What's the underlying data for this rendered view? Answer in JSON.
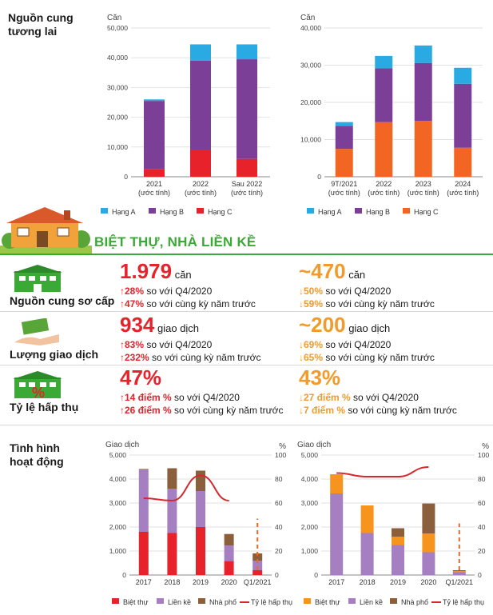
{
  "top": {
    "section_title_line1": "Nguồn cung",
    "section_title_line2": "tương lai"
  },
  "banner": {
    "title": "BIỆT THỰ, NHÀ LIỀN KỀ"
  },
  "metrics": [
    {
      "label": "Nguồn cung sơ cấp",
      "left": {
        "value": "1.979",
        "unit": "căn",
        "line1": {
          "arrow": "↑",
          "pct": "28%",
          "text": "so với Q4/2020"
        },
        "line2": {
          "arrow": "↑",
          "pct": "47%",
          "text": "so với cùng kỳ năm trước"
        }
      },
      "right": {
        "value": "~470",
        "unit": "căn",
        "line1": {
          "arrow": "↓",
          "pct": "50%",
          "text": "so với Q4/2020"
        },
        "line2": {
          "arrow": "↓",
          "pct": "59%",
          "text": "so với cùng kỳ năm trước"
        }
      }
    },
    {
      "label": "Lượng giao dịch",
      "left": {
        "value": "934",
        "unit": "giao dịch",
        "line1": {
          "arrow": "↑",
          "pct": "83%",
          "text": "so với Q4/2020"
        },
        "line2": {
          "arrow": "↑",
          "pct": "232%",
          "text": "so với cùng kỳ năm trước"
        }
      },
      "right": {
        "value": "~200",
        "unit": "giao dịch",
        "line1": {
          "arrow": "↓",
          "pct": "69%",
          "text": "so với Q4/2020"
        },
        "line2": {
          "arrow": "↓",
          "pct": "65%",
          "text": "so với cùng kỳ năm trước"
        }
      }
    },
    {
      "label": "Tỷ lệ hấp thụ",
      "left": {
        "value": "47%",
        "unit": "",
        "line1": {
          "arrow": "↑",
          "pct": "14 điểm %",
          "text": "so với Q4/2020"
        },
        "line2": {
          "arrow": "↑",
          "pct": "26 điểm %",
          "text": "so với cùng kỳ năm trước"
        }
      },
      "right": {
        "value": "43%",
        "unit": "",
        "line1": {
          "arrow": "↓",
          "pct": "27 điểm %",
          "text": "so với Q4/2020"
        },
        "line2": {
          "arrow": "↓",
          "pct": "7 điểm %",
          "text": "so với cùng kỳ năm trước"
        }
      }
    }
  ],
  "bottom": {
    "section_title_line1": "Tình hình",
    "section_title_line2": "hoạt động"
  },
  "colors": {
    "hang_a": "#29aae2",
    "hang_b": "#7b3f98",
    "hang_c_1": "#e8222b",
    "hang_c_2": "#f26522",
    "biet_thu_1": "#e8222b",
    "biet_thu_2": "#f7941d",
    "lien_ke": "#a57fc1",
    "nha_pho": "#8b5e3c",
    "ty_le": "#d7282f",
    "green": "#3aa935"
  },
  "chart_data": [
    {
      "type": "bar",
      "stacked": true,
      "ylabel": "Căn",
      "ylim": [
        0,
        50000
      ],
      "yticks": [
        "0",
        "10,000",
        "20,000",
        "30,000",
        "40,000",
        "50,000"
      ],
      "categories": [
        "2021",
        "2022",
        "Sau 2022"
      ],
      "category_sub": [
        "(ước tính)",
        "(ước tính)",
        "(ước tính)"
      ],
      "series": [
        {
          "name": "Hạng C",
          "values": [
            2500,
            9000,
            6000
          ]
        },
        {
          "name": "Hạng B",
          "values": [
            23000,
            30000,
            33500
          ]
        },
        {
          "name": "Hạng A",
          "values": [
            500,
            5500,
            5000
          ]
        }
      ],
      "legend_position": "bottom"
    },
    {
      "type": "bar",
      "stacked": true,
      "ylabel": "Căn",
      "ylim": [
        0,
        40000
      ],
      "yticks": [
        "0",
        "10,000",
        "20,000",
        "30,000",
        "40,000"
      ],
      "categories": [
        "9T/2021",
        "2022",
        "2023",
        "2024"
      ],
      "category_sub": [
        "(ước tính)",
        "(ước tính)",
        "(ước tính)",
        "(ước tính)"
      ],
      "series": [
        {
          "name": "Hạng C",
          "values": [
            7500,
            14700,
            15000,
            7800
          ]
        },
        {
          "name": "Hạng B",
          "values": [
            6200,
            14500,
            15600,
            17200
          ]
        },
        {
          "name": "Hạng A",
          "values": [
            1000,
            3300,
            4700,
            4300
          ]
        }
      ],
      "legend_position": "bottom"
    },
    {
      "type": "bar",
      "stacked": true,
      "ylabel": "Giao dịch",
      "ylabel_right": "%",
      "ylim": [
        0,
        5000
      ],
      "ylim_right": [
        0,
        100
      ],
      "yticks": [
        "0",
        "1,000",
        "2,000",
        "3,000",
        "4,000",
        "5,000"
      ],
      "yticks_right": [
        "0",
        "20",
        "40",
        "60",
        "80",
        "100"
      ],
      "categories": [
        "2017",
        "2018",
        "2019",
        "2020",
        "Q1/2021"
      ],
      "series": [
        {
          "name": "Biệt thự",
          "values": [
            1800,
            1750,
            2000,
            580,
            200
          ]
        },
        {
          "name": "Liền kề",
          "values": [
            2600,
            1850,
            1500,
            650,
            400
          ]
        },
        {
          "name": "Nhà phố",
          "values": [
            20,
            850,
            850,
            480,
            300
          ]
        }
      ],
      "line": {
        "name": "Tỷ lệ hấp thụ",
        "values": [
          64,
          62,
          83,
          62,
          null
        ],
        "dashed_last": 47
      },
      "legend_position": "bottom"
    },
    {
      "type": "bar",
      "stacked": true,
      "ylabel": "Giao dịch",
      "ylabel_right": "%",
      "ylim": [
        0,
        5000
      ],
      "ylim_right": [
        0,
        100
      ],
      "yticks": [
        "0",
        "1,000",
        "2,000",
        "3,000",
        "4,000",
        "5,000"
      ],
      "yticks_right": [
        "0",
        "20",
        "40",
        "60",
        "80",
        "100"
      ],
      "categories": [
        "2017",
        "2018",
        "2019",
        "2020",
        "Q1/2021"
      ],
      "series": [
        {
          "name": "Liền kề",
          "values": [
            3400,
            1750,
            1250,
            950,
            130
          ]
        },
        {
          "name": "Biệt thự",
          "values": [
            800,
            1150,
            350,
            780,
            30
          ]
        },
        {
          "name": "Nhà phố",
          "values": [
            0,
            0,
            350,
            1250,
            40
          ]
        }
      ],
      "line": {
        "name": "Tỷ lệ hấp thụ",
        "values": [
          85,
          82,
          82,
          90,
          null
        ],
        "dashed_last": 43
      },
      "legend_position": "bottom"
    }
  ]
}
